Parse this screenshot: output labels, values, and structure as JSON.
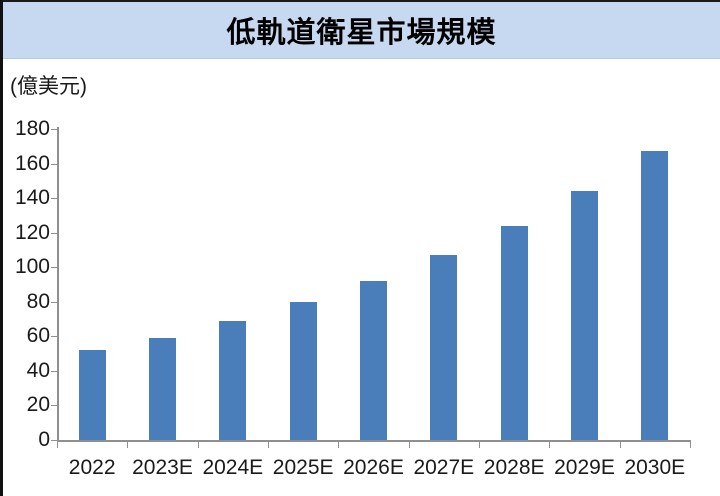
{
  "banner": {
    "title": "低軌道衛星市場規模",
    "background_color": "#c6d9f0"
  },
  "unit_label": "(億美元)",
  "chart_data": {
    "type": "bar",
    "title": "低軌道衛星市場規模",
    "categories": [
      "2022",
      "2023E",
      "2024E",
      "2025E",
      "2026E",
      "2027E",
      "2028E",
      "2029E",
      "2030E"
    ],
    "values": [
      52,
      59,
      69,
      80,
      92,
      107,
      124,
      144,
      167
    ],
    "xlabel": "",
    "ylabel": "(億美元)",
    "ylim": [
      0,
      180
    ],
    "ytick_step": 20,
    "yticks": [
      0,
      20,
      40,
      60,
      80,
      100,
      120,
      140,
      160,
      180
    ],
    "bar_color": "#4a7ebb",
    "axis_color": "#8f8f8f",
    "grid": false,
    "legend": "none"
  }
}
